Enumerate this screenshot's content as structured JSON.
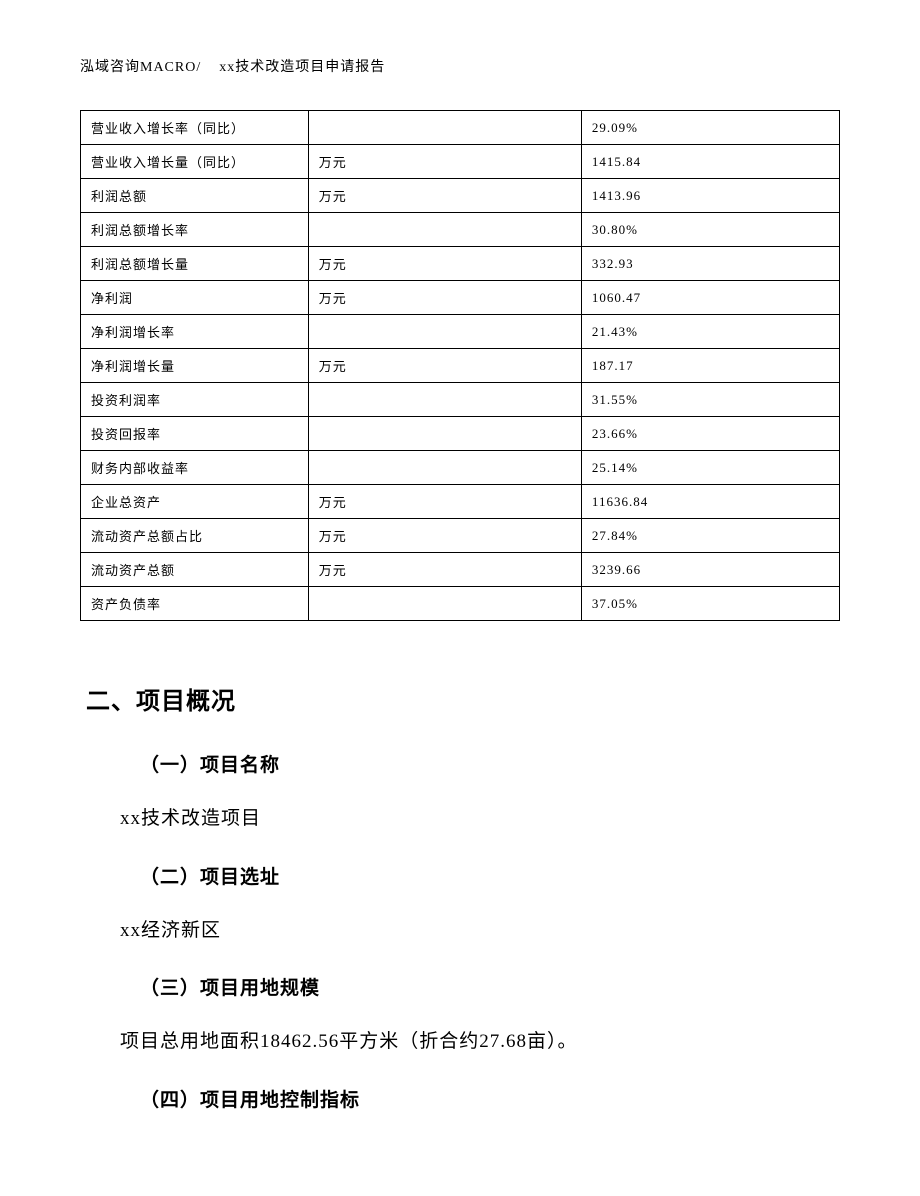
{
  "header": {
    "left": "泓域咨询MACRO/",
    "right": "xx技术改造项目申请报告"
  },
  "table": {
    "columns": [
      "label",
      "unit",
      "value"
    ],
    "col_widths_pct": [
      30,
      36,
      34
    ],
    "border_color": "#000000",
    "font_size_pt": 10,
    "rows": [
      {
        "label": "营业收入增长率（同比）",
        "unit": "",
        "value": "29.09%"
      },
      {
        "label": "营业收入增长量（同比）",
        "unit": "万元",
        "value": "1415.84"
      },
      {
        "label": "利润总额",
        "unit": "万元",
        "value": "1413.96"
      },
      {
        "label": "利润总额增长率",
        "unit": "",
        "value": "30.80%"
      },
      {
        "label": "利润总额增长量",
        "unit": "万元",
        "value": "332.93"
      },
      {
        "label": "净利润",
        "unit": "万元",
        "value": "1060.47"
      },
      {
        "label": "净利润增长率",
        "unit": "",
        "value": "21.43%"
      },
      {
        "label": "净利润增长量",
        "unit": "万元",
        "value": "187.17"
      },
      {
        "label": "投资利润率",
        "unit": "",
        "value": "31.55%"
      },
      {
        "label": "投资回报率",
        "unit": "",
        "value": "23.66%"
      },
      {
        "label": "财务内部收益率",
        "unit": "",
        "value": "25.14%"
      },
      {
        "label": "企业总资产",
        "unit": "万元",
        "value": "11636.84"
      },
      {
        "label": "流动资产总额占比",
        "unit": "万元",
        "value": "27.84%"
      },
      {
        "label": "流动资产总额",
        "unit": "万元",
        "value": "3239.66"
      },
      {
        "label": "资产负债率",
        "unit": "",
        "value": "37.05%"
      }
    ]
  },
  "section": {
    "title": "二、项目概况",
    "items": [
      {
        "heading": "（一）项目名称",
        "body": "xx技术改造项目"
      },
      {
        "heading": "（二）项目选址",
        "body": "xx经济新区"
      },
      {
        "heading": "（三）项目用地规模",
        "body": "项目总用地面积18462.56平方米（折合约27.68亩）。"
      },
      {
        "heading": "（四）项目用地控制指标",
        "body": ""
      }
    ]
  },
  "style": {
    "page_bg": "#ffffff",
    "text_color": "#000000",
    "section_title_fontsize_pt": 18,
    "subheading_fontsize_pt": 14,
    "body_fontsize_pt": 14,
    "header_fontsize_pt": 10
  }
}
